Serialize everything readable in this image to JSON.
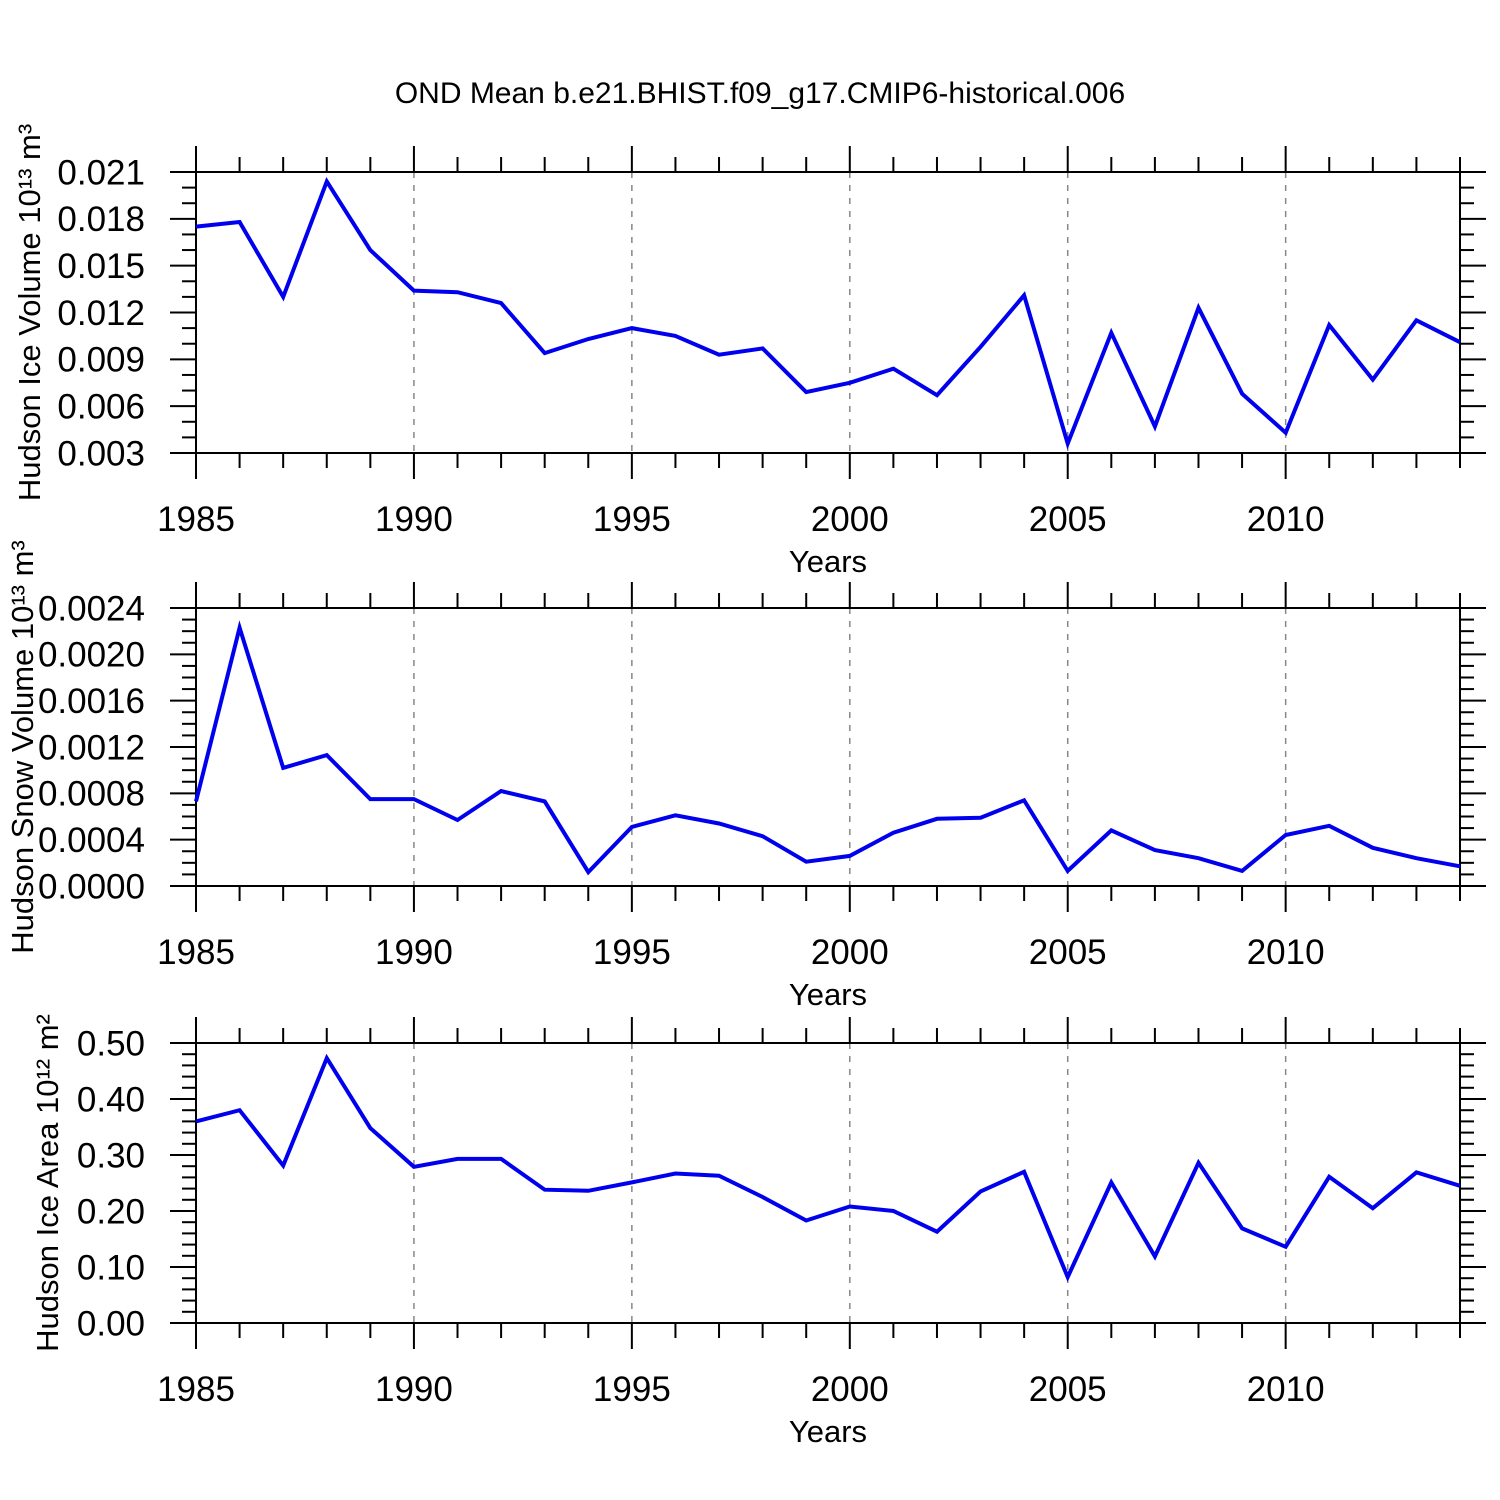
{
  "title": "OND Mean b.e21.BHIST.f09_g17.CMIP6-historical.006",
  "line_color": "#0000ee",
  "axis_color": "#000000",
  "grid_color": "#878787",
  "chart_data": [
    {
      "type": "line",
      "title": "OND Mean b.e21.BHIST.f09_g17.CMIP6-historical.006",
      "ylabel": "Hudson Ice Volume 10¹³ m³",
      "xlabel": "Years",
      "ylim": [
        0.003,
        0.021
      ],
      "ytick_step": 0.003,
      "yminor_step": 0.001,
      "ydecimals": 3,
      "xlim": [
        1985,
        2014
      ],
      "xticks": [
        1985,
        1990,
        1995,
        2000,
        2005,
        2010
      ],
      "grid_years": [
        1990,
        1995,
        2000,
        2005,
        2010
      ],
      "grid": "vertical-dashed",
      "legend": "none",
      "x": [
        1985,
        1986,
        1987,
        1988,
        1989,
        1990,
        1991,
        1992,
        1993,
        1994,
        1995,
        1996,
        1997,
        1998,
        1999,
        2000,
        2001,
        2002,
        2003,
        2004,
        2005,
        2006,
        2007,
        2008,
        2009,
        2010,
        2011,
        2012,
        2013,
        2014
      ],
      "values": [
        0.0175,
        0.0178,
        0.013,
        0.0204,
        0.016,
        0.0134,
        0.0133,
        0.0126,
        0.0094,
        0.0103,
        0.011,
        0.0105,
        0.0093,
        0.0097,
        0.0069,
        0.0075,
        0.0084,
        0.0067,
        0.0098,
        0.0131,
        0.0036,
        0.0107,
        0.0047,
        0.0123,
        0.0068,
        0.0043,
        0.0112,
        0.0077,
        0.0115,
        0.0101
      ]
    },
    {
      "type": "line",
      "title": "",
      "ylabel": "Hudson Snow Volume 10¹³ m³",
      "xlabel": "Years",
      "ylim": [
        0.0,
        0.0024
      ],
      "ytick_step": 0.0004,
      "yminor_step": 0.0001,
      "ydecimals": 4,
      "xlim": [
        1985,
        2014
      ],
      "xticks": [
        1985,
        1990,
        1995,
        2000,
        2005,
        2010
      ],
      "grid_years": [
        1990,
        1995,
        2000,
        2005,
        2010
      ],
      "grid": "vertical-dashed",
      "legend": "none",
      "x": [
        1985,
        1986,
        1987,
        1988,
        1989,
        1990,
        1991,
        1992,
        1993,
        1994,
        1995,
        1996,
        1997,
        1998,
        1999,
        2000,
        2001,
        2002,
        2003,
        2004,
        2005,
        2006,
        2007,
        2008,
        2009,
        2010,
        2011,
        2012,
        2013,
        2014
      ],
      "values": [
        0.00073,
        0.00223,
        0.00102,
        0.00113,
        0.00075,
        0.00075,
        0.00057,
        0.00082,
        0.00073,
        0.00012,
        0.00051,
        0.00061,
        0.00054,
        0.00043,
        0.00021,
        0.00026,
        0.00046,
        0.00058,
        0.00059,
        0.00074,
        0.00013,
        0.00048,
        0.00031,
        0.00024,
        0.00013,
        0.00044,
        0.00052,
        0.00033,
        0.00024,
        0.00017
      ]
    },
    {
      "type": "line",
      "title": "",
      "ylabel": "Hudson Ice Area 10¹² m²",
      "xlabel": "Years",
      "ylim": [
        0.0,
        0.5
      ],
      "ytick_step": 0.1,
      "yminor_step": 0.02,
      "ydecimals": 2,
      "xlim": [
        1985,
        2014
      ],
      "xticks": [
        1985,
        1990,
        1995,
        2000,
        2005,
        2010
      ],
      "grid_years": [
        1990,
        1995,
        2000,
        2005,
        2010
      ],
      "grid": "vertical-dashed",
      "legend": "none",
      "x": [
        1985,
        1986,
        1987,
        1988,
        1989,
        1990,
        1991,
        1992,
        1993,
        1994,
        1995,
        1996,
        1997,
        1998,
        1999,
        2000,
        2001,
        2002,
        2003,
        2004,
        2005,
        2006,
        2007,
        2008,
        2009,
        2010,
        2011,
        2012,
        2013,
        2014
      ],
      "values": [
        0.36,
        0.38,
        0.281,
        0.473,
        0.348,
        0.279,
        0.293,
        0.293,
        0.238,
        0.236,
        0.251,
        0.267,
        0.263,
        0.225,
        0.183,
        0.208,
        0.2,
        0.163,
        0.235,
        0.27,
        0.082,
        0.251,
        0.119,
        0.286,
        0.169,
        0.136,
        0.261,
        0.205,
        0.269,
        0.245
      ]
    }
  ]
}
